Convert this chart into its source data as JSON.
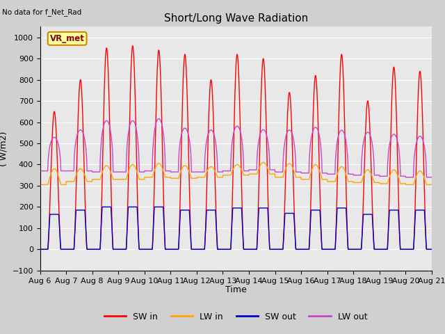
{
  "title": "Short/Long Wave Radiation",
  "xlabel": "Time",
  "ylabel": "( W/m2)",
  "ylim": [
    -100,
    1050
  ],
  "note": "No data for f_Net_Rad",
  "station_label": "VR_met",
  "x_tick_labels": [
    "Aug 6",
    "Aug 7",
    "Aug 8",
    "Aug 9",
    "Aug 10",
    "Aug 11",
    "Aug 12",
    "Aug 13",
    "Aug 14",
    "Aug 15",
    "Aug 16",
    "Aug 17",
    "Aug 18",
    "Aug 19",
    "Aug 20",
    "Aug 21"
  ],
  "plot_bg_color": "#e8e8e8",
  "fig_bg_color": "#d0d0d0",
  "sw_in_color": "#ff0000",
  "lw_in_color": "#ffa500",
  "sw_out_color": "#0000cc",
  "lw_out_color": "#cc44cc",
  "sw_in_peaks": [
    650,
    800,
    950,
    960,
    940,
    920,
    800,
    920,
    900,
    740,
    820,
    920,
    700,
    860,
    840
  ],
  "lw_out_peaks": [
    550,
    590,
    640,
    640,
    650,
    600,
    590,
    610,
    590,
    590,
    605,
    590,
    580,
    570,
    560
  ],
  "sw_out_peaks": [
    165,
    185,
    200,
    200,
    200,
    185,
    185,
    195,
    195,
    170,
    185,
    195,
    165,
    185,
    185
  ],
  "lw_in_peaks": [
    380,
    380,
    395,
    400,
    405,
    395,
    390,
    400,
    410,
    405,
    400,
    390,
    375,
    375,
    370
  ],
  "lw_in_night": [
    305,
    320,
    330,
    330,
    340,
    335,
    340,
    350,
    355,
    340,
    330,
    320,
    315,
    310,
    305
  ],
  "lw_out_night": [
    370,
    370,
    365,
    365,
    370,
    365,
    365,
    370,
    375,
    365,
    360,
    355,
    350,
    345,
    340
  ],
  "days": 15,
  "pts_per_day": 144
}
